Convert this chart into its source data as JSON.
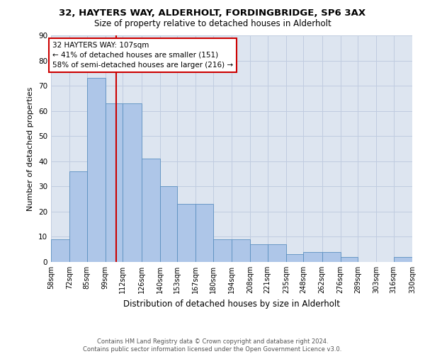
{
  "title1": "32, HAYTERS WAY, ALDERHOLT, FORDINGBRIDGE, SP6 3AX",
  "title2": "Size of property relative to detached houses in Alderholt",
  "xlabel": "Distribution of detached houses by size in Alderholt",
  "ylabel": "Number of detached properties",
  "footer": "Contains HM Land Registry data © Crown copyright and database right 2024.\nContains public sector information licensed under the Open Government Licence v3.0.",
  "annotation_line1": "32 HAYTERS WAY: 107sqm",
  "annotation_line2": "← 41% of detached houses are smaller (151)",
  "annotation_line3": "58% of semi-detached houses are larger (216) →",
  "property_size": 107,
  "bar_edges": [
    58,
    72,
    85,
    99,
    112,
    126,
    140,
    153,
    167,
    180,
    194,
    208,
    221,
    235,
    248,
    262,
    276,
    289,
    303,
    316,
    330
  ],
  "bar_heights": [
    9,
    36,
    73,
    63,
    63,
    41,
    30,
    23,
    23,
    9,
    9,
    7,
    7,
    3,
    4,
    4,
    2,
    0,
    0,
    2,
    0
  ],
  "bar_color": "#aec6e8",
  "bar_edge_color": "#5a8fc0",
  "red_line_color": "#cc0000",
  "annotation_box_color": "#cc0000",
  "background_color": "#ffffff",
  "axes_bg_color": "#dde5f0",
  "grid_color": "#c0cce0",
  "ylim": [
    0,
    90
  ],
  "yticks": [
    0,
    10,
    20,
    30,
    40,
    50,
    60,
    70,
    80,
    90
  ],
  "tick_labels": [
    "58sqm",
    "72sqm",
    "85sqm",
    "99sqm",
    "112sqm",
    "126sqm",
    "140sqm",
    "153sqm",
    "167sqm",
    "180sqm",
    "194sqm",
    "208sqm",
    "221sqm",
    "235sqm",
    "248sqm",
    "262sqm",
    "276sqm",
    "289sqm",
    "303sqm",
    "316sqm",
    "330sqm"
  ],
  "title1_fontsize": 9.5,
  "title2_fontsize": 8.5,
  "ylabel_fontsize": 8,
  "xlabel_fontsize": 8.5,
  "footer_fontsize": 6.0
}
